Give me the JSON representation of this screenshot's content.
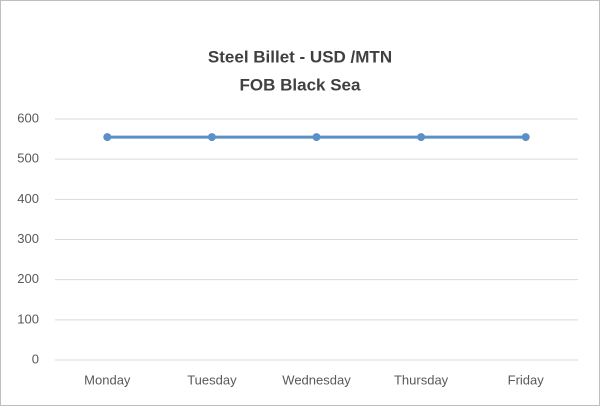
{
  "chart_data": {
    "type": "line",
    "title": "Steel Billet - USD /MTN",
    "subtitle": "FOB Black Sea",
    "categories": [
      "Monday",
      "Tuesday",
      "Wednesday",
      "Thursday",
      "Friday"
    ],
    "values": [
      555,
      555,
      555,
      555,
      555
    ],
    "color": "#5b8fc7",
    "ylim": [
      0,
      600
    ],
    "yticks": [
      0,
      100,
      200,
      300,
      400,
      500,
      600
    ],
    "grid": true
  }
}
